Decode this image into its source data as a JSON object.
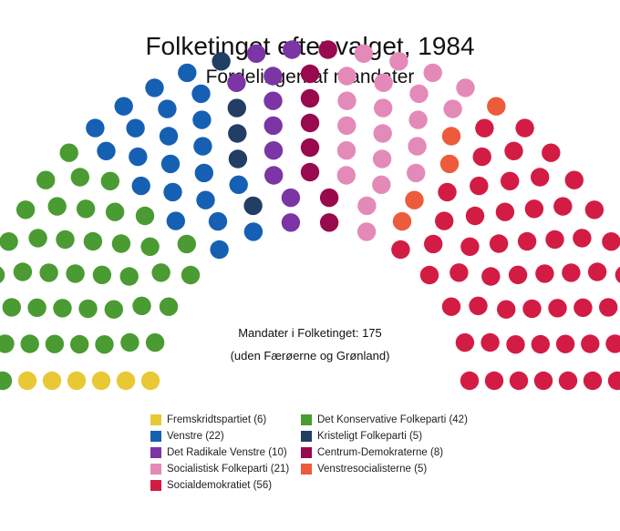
{
  "chart_data": {
    "type": "parliament",
    "title": "Folketinget efter valget, 1984",
    "subtitle": "Fordelingen af mandater",
    "center_text": [
      "Mandater i Folketinget: 175",
      "(uden Færøerne og Grønland)"
    ],
    "total": 175,
    "parties": [
      {
        "name": "Fremskridtspartiet",
        "label": "Fremskridtspartiet (6)",
        "seats": 6,
        "color": "#e9c836"
      },
      {
        "name": "Det Konservative Folkeparti",
        "label": "Det Konservative Folkeparti (42)",
        "seats": 42,
        "color": "#4a9b32"
      },
      {
        "name": "Venstre",
        "label": "Venstre (22)",
        "seats": 22,
        "color": "#1660b4"
      },
      {
        "name": "Kristeligt Folkeparti",
        "label": "Kristeligt Folkeparti (5)",
        "seats": 5,
        "color": "#233e64"
      },
      {
        "name": "Det Radikale Venstre",
        "label": "Det Radikale Venstre (10)",
        "seats": 10,
        "color": "#7c35a4"
      },
      {
        "name": "Centrum-Demokraterne",
        "label": "Centrum-Demokraterne (8)",
        "seats": 8,
        "color": "#99094d"
      },
      {
        "name": "Socialistisk Folkeparti",
        "label": "Socialistisk Folkeparti (21)",
        "seats": 21,
        "color": "#e48ab8"
      },
      {
        "name": "Venstresocialisterne",
        "label": "Venstresocialisterne (5)",
        "seats": 5,
        "color": "#ec5b3c"
      },
      {
        "name": "Socialdemokratiet",
        "label": "Socialdemokratiet (56)",
        "seats": 56,
        "color": "#d31c44"
      }
    ],
    "legend_order": [
      "Fremskridtspartiet",
      "Det Konservative Folkeparti",
      "Venstre",
      "Kristeligt Folkeparti",
      "Det Radikale Venstre",
      "Centrum-Demokraterne",
      "Socialistisk Folkeparti",
      "Venstresocialisterne",
      "Socialdemokratiet"
    ]
  }
}
